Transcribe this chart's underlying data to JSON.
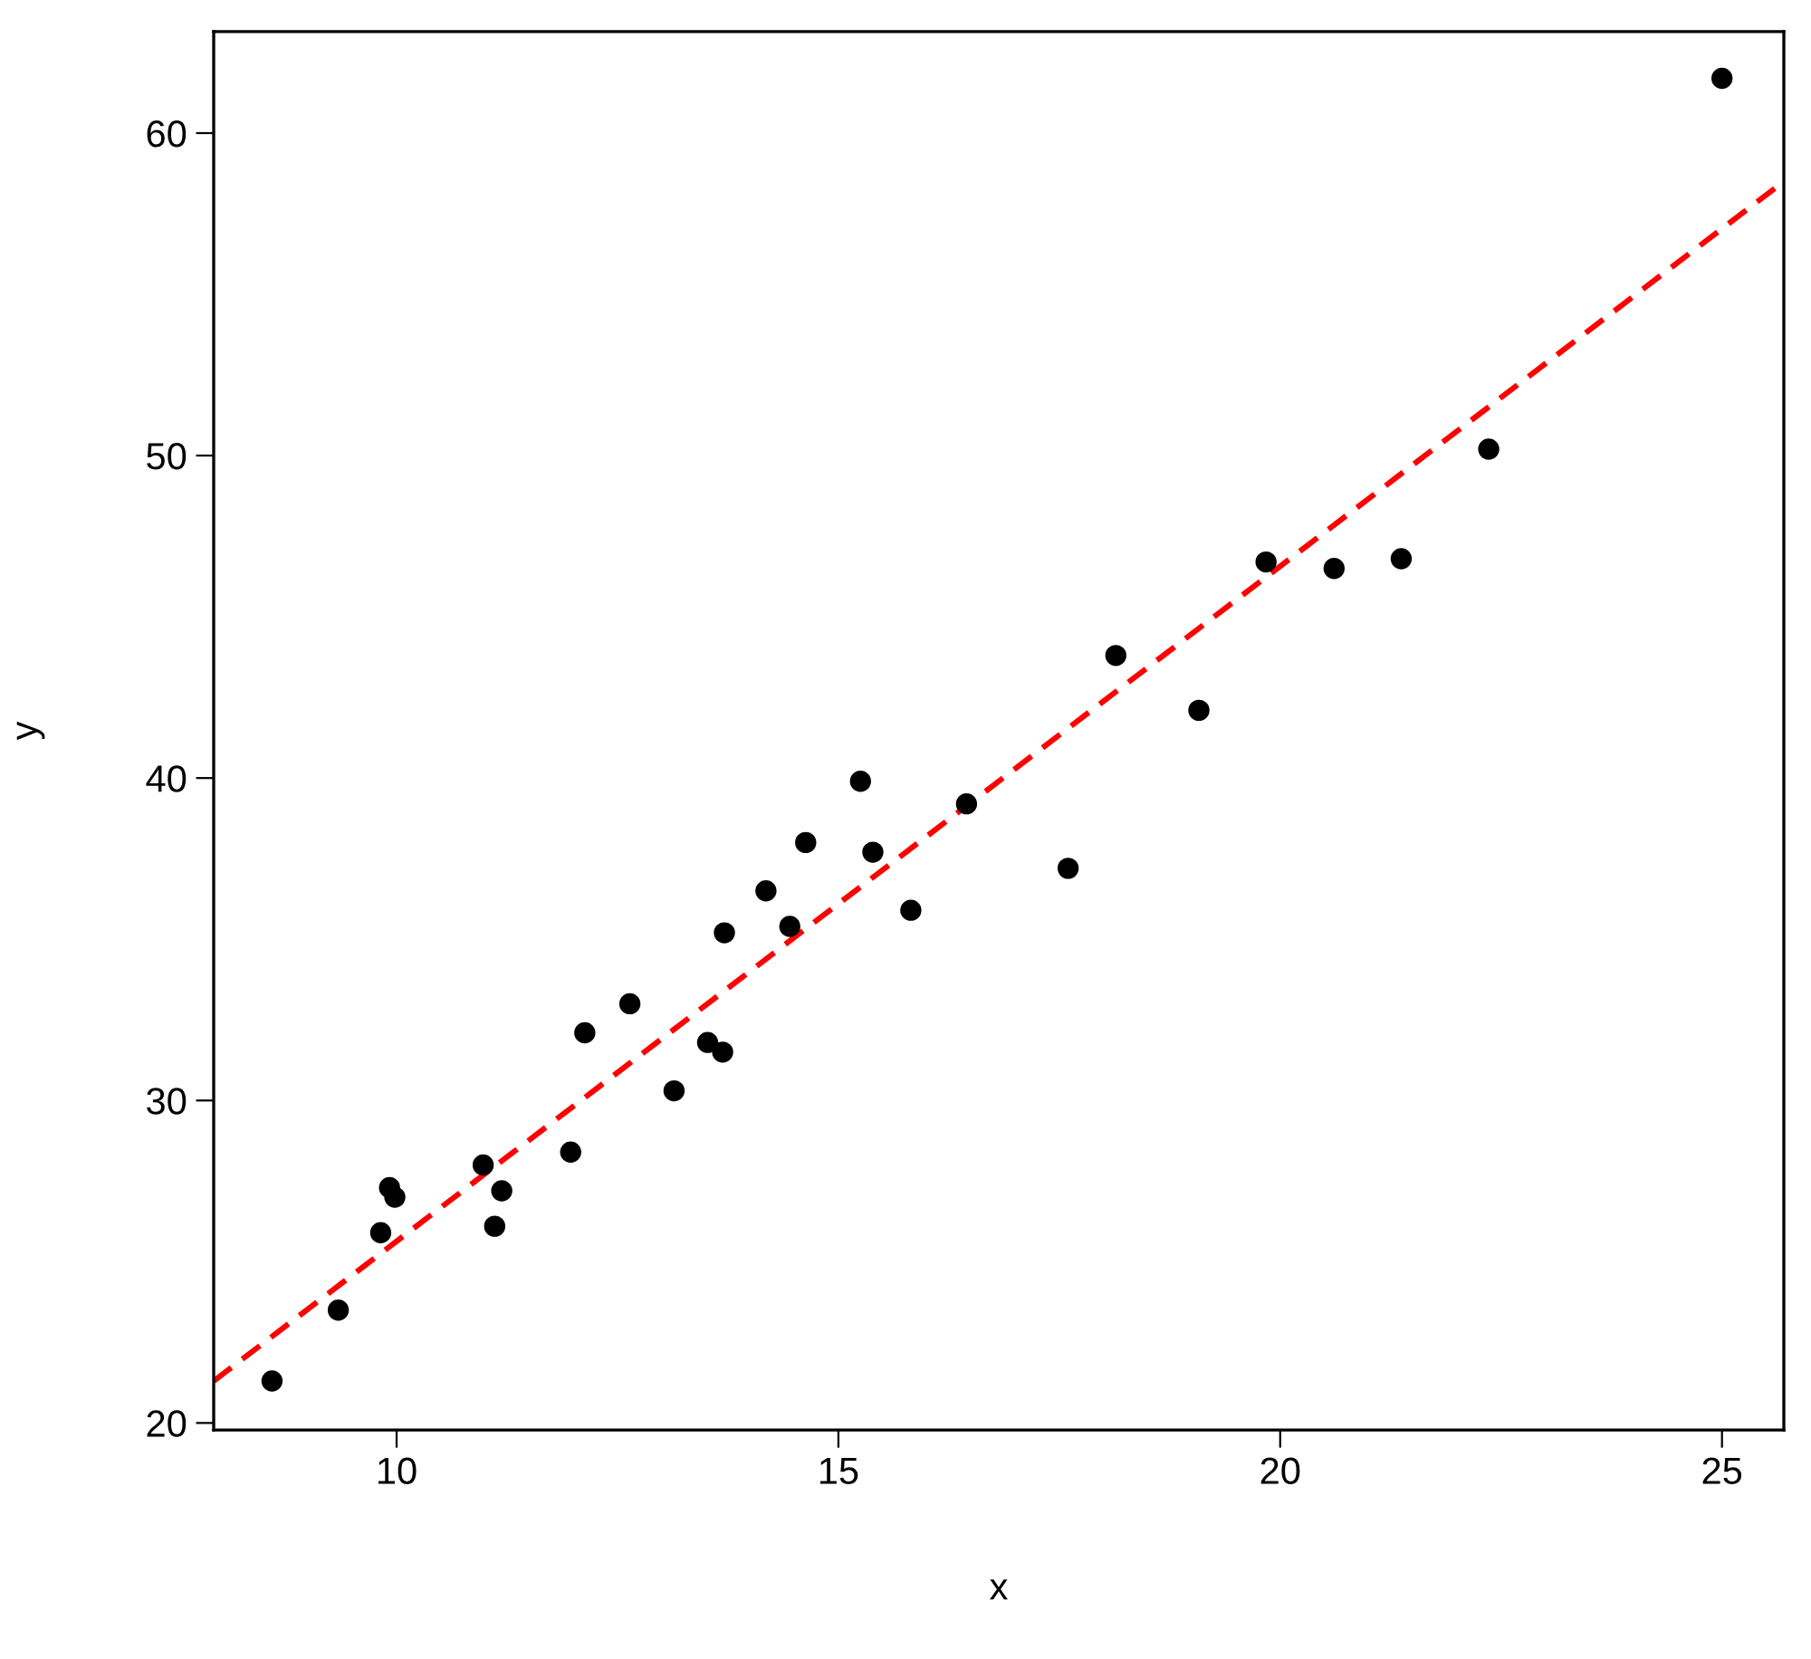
{
  "chart_data": {
    "type": "scatter",
    "xlabel": "x",
    "ylabel": "y",
    "xlim": [
      7.93,
      25.7
    ],
    "ylim": [
      19.78,
      63.15
    ],
    "xticks": [
      10,
      15,
      20,
      25
    ],
    "yticks": [
      20,
      30,
      40,
      50,
      60
    ],
    "grid": false,
    "series": [
      {
        "color": "#000000",
        "marker": "circle",
        "x": [
          8.59,
          9.34,
          9.82,
          9.92,
          9.98,
          10.98,
          11.11,
          11.19,
          11.97,
          12.13,
          12.64,
          13.14,
          13.52,
          13.69,
          13.71,
          14.18,
          14.45,
          14.63,
          15.25,
          15.39,
          15.82,
          16.45,
          17.6,
          18.14,
          19.08,
          19.84,
          20.61,
          21.37,
          22.36,
          25.0
        ],
        "values": [
          21.3,
          23.5,
          25.9,
          27.3,
          27.0,
          28.0,
          26.1,
          27.2,
          28.4,
          32.1,
          33.0,
          30.3,
          31.8,
          31.5,
          35.2,
          36.5,
          35.4,
          38.0,
          39.9,
          37.7,
          35.9,
          39.2,
          37.2,
          43.8,
          42.1,
          46.7,
          46.5,
          46.8,
          50.2,
          61.7
        ]
      },
      {
        "type": "line",
        "color": "#ff0000",
        "marker": "none",
        "line_style": "dashed",
        "x": [
          7.93,
          25.7
        ],
        "values": [
          21.3,
          58.5
        ]
      }
    ]
  }
}
